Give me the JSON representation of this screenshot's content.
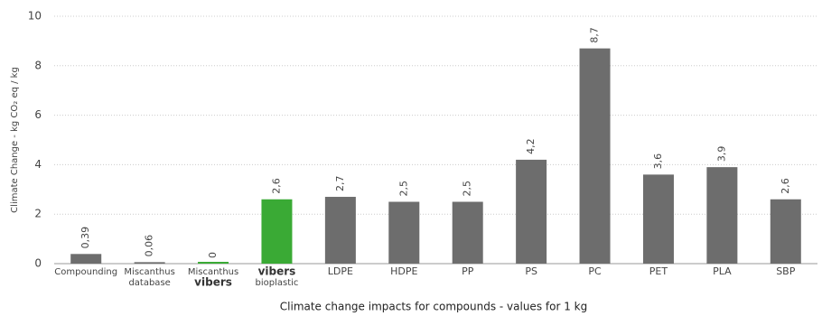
{
  "chart_data": {
    "type": "bar",
    "ylabel": "Climate Change - kg CO₂ eq / kg",
    "xlabel": "Climate change impacts for compounds - values for 1 kg",
    "categories": [
      [
        "Compounding"
      ],
      [
        "Miscanthus",
        "database"
      ],
      [
        "Miscanthus",
        "vibers"
      ],
      [
        "vibers",
        "bioplastic"
      ],
      [
        "LDPE"
      ],
      [
        "HDPE"
      ],
      [
        "PP"
      ],
      [
        "PS"
      ],
      [
        "PC"
      ],
      [
        "PET"
      ],
      [
        "PLA"
      ],
      [
        "SBP"
      ]
    ],
    "bold": [
      [
        false
      ],
      [
        false,
        false
      ],
      [
        false,
        true
      ],
      [
        true,
        false
      ],
      [
        false
      ],
      [
        false
      ],
      [
        false
      ],
      [
        false
      ],
      [
        false
      ],
      [
        false
      ],
      [
        false
      ],
      [
        false
      ]
    ],
    "values": [
      0.39,
      0.06,
      0,
      2.6,
      2.7,
      2.5,
      2.5,
      4.2,
      8.7,
      3.6,
      3.9,
      2.6
    ],
    "value_labels": [
      "0,39",
      "0,06",
      "0",
      "2,6",
      "2,7",
      "2,5",
      "2,5",
      "4,2",
      "8,7",
      "3,6",
      "3,9",
      "2,6"
    ],
    "colors": [
      "#6d6d6d",
      "#6d6d6d",
      "#3aaa35",
      "#3aaa35",
      "#6d6d6d",
      "#6d6d6d",
      "#6d6d6d",
      "#6d6d6d",
      "#6d6d6d",
      "#6d6d6d",
      "#6d6d6d",
      "#6d6d6d"
    ],
    "ylim": [
      0,
      10
    ],
    "yticks": [
      0,
      2,
      4,
      6,
      8,
      10
    ],
    "grid": true
  }
}
